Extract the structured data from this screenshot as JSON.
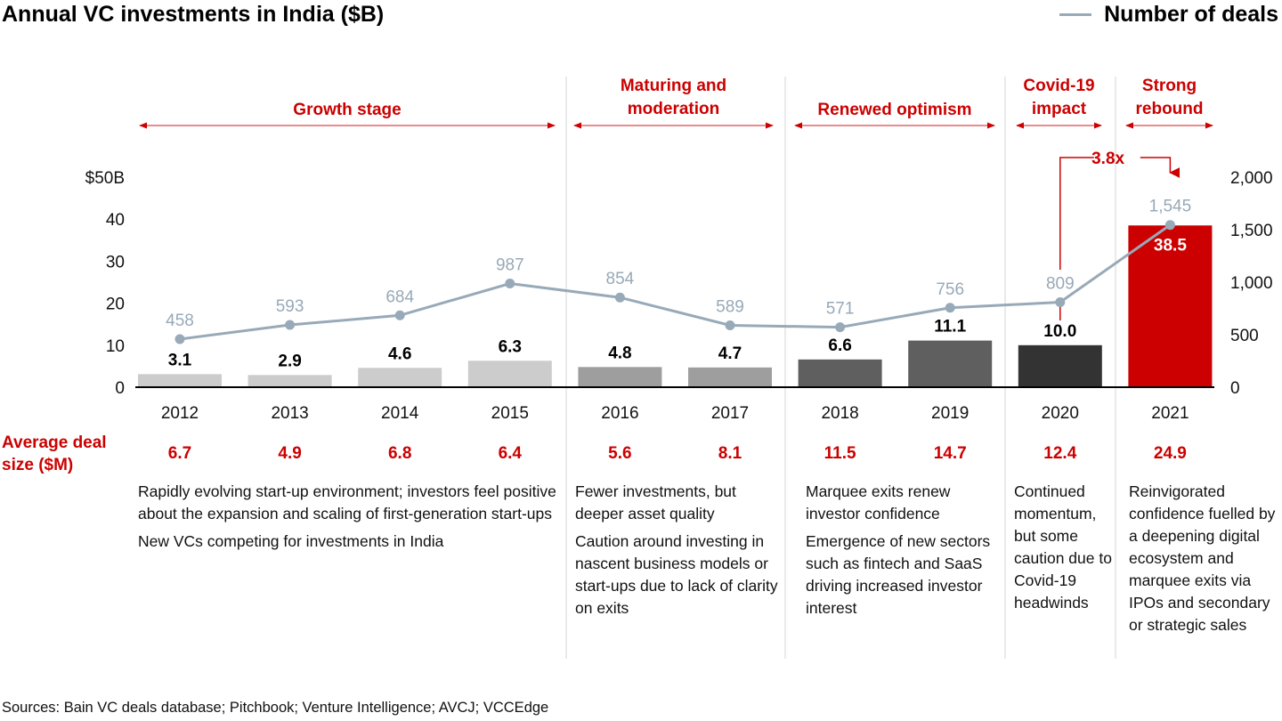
{
  "title": "Annual VC investments in India ($B)",
  "legend": {
    "label": "Number of deals",
    "color": "#98a9b8"
  },
  "phases": [
    {
      "label": "Growth stage",
      "years": [
        "2012",
        "2013",
        "2014",
        "2015"
      ]
    },
    {
      "label": "Maturing and moderation",
      "years": [
        "2016",
        "2017"
      ]
    },
    {
      "label": "Renewed optimism",
      "years": [
        "2018",
        "2019"
      ]
    },
    {
      "label": "Covid-19 impact",
      "years": [
        "2020"
      ]
    },
    {
      "label": "Strong rebound",
      "years": [
        "2021"
      ]
    }
  ],
  "phase_color": "#cc0000",
  "growth_annotation": {
    "label": "3.8x",
    "from": "2020",
    "to": "2021"
  },
  "avg_deal_size": {
    "label": "Average deal size ($M)",
    "values": [
      "6.7",
      "4.9",
      "6.8",
      "6.4",
      "5.6",
      "8.1",
      "11.5",
      "14.7",
      "12.4",
      "24.9"
    ]
  },
  "descriptions": [
    {
      "phase": "Growth stage",
      "paragraphs": [
        "Rapidly evolving start-up environment; investors feel positive about the expansion and scaling of first-generation start-ups",
        "New VCs competing for investments in India"
      ]
    },
    {
      "phase": "Maturing and moderation",
      "paragraphs": [
        "Fewer investments, but deeper asset quality",
        "Caution around investing in nascent business models or start-ups due to lack of clarity on exits"
      ]
    },
    {
      "phase": "Renewed optimism",
      "paragraphs": [
        "Marquee exits renew investor confidence",
        "Emergence of new sectors such as fintech and SaaS driving increased investor interest"
      ]
    },
    {
      "phase": "Covid-19 impact",
      "paragraphs": [
        "Continued momentum, but some caution due to Covid-19 headwinds"
      ]
    },
    {
      "phase": "Strong rebound",
      "paragraphs": [
        "Reinvigorated confidence fuelled by a deepening digital ecosystem and marquee exits via IPOs and secondary or strategic sales"
      ]
    }
  ],
  "source": "Sources: Bain VC deals database; Pitchbook; Venture Intelligence; AVCJ; VCCEdge",
  "chart_data": {
    "type": "bar",
    "title": "Annual VC investments in India ($B)",
    "categories": [
      "2012",
      "2013",
      "2014",
      "2015",
      "2016",
      "2017",
      "2018",
      "2019",
      "2020",
      "2021"
    ],
    "series": [
      {
        "name": "VC investments ($B)",
        "axis": "left",
        "type": "bar",
        "values": [
          3.1,
          2.9,
          4.6,
          6.3,
          4.8,
          4.7,
          6.6,
          11.1,
          10.0,
          38.5
        ],
        "labels": [
          "3.1",
          "2.9",
          "4.6",
          "6.3",
          "4.8",
          "4.7",
          "6.6",
          "11.1",
          "10.0",
          "38.5"
        ],
        "colors": [
          "#cccccc",
          "#cccccc",
          "#cccccc",
          "#cccccc",
          "#9e9e9e",
          "#9e9e9e",
          "#5f5f5f",
          "#5f5f5f",
          "#333333",
          "#cc0000"
        ]
      },
      {
        "name": "Number of deals",
        "axis": "right",
        "type": "line",
        "color": "#98a9b8",
        "values": [
          458,
          593,
          684,
          987,
          854,
          589,
          571,
          756,
          809,
          1545
        ],
        "labels": [
          "458",
          "593",
          "684",
          "987",
          "854",
          "589",
          "571",
          "756",
          "809",
          "1,545"
        ]
      }
    ],
    "y_left": {
      "ylim": [
        0,
        50
      ],
      "ticks": [
        "0",
        "10",
        "20",
        "30",
        "40",
        "$50B"
      ],
      "tick_values": [
        0,
        10,
        20,
        30,
        40,
        50
      ]
    },
    "y_right": {
      "ylim": [
        0,
        2000
      ],
      "ticks": [
        "0",
        "500",
        "1,000",
        "1,500",
        "2,000"
      ],
      "tick_values": [
        0,
        500,
        1000,
        1500,
        2000
      ]
    },
    "xlabel": "",
    "ylabel": "",
    "grid": false,
    "legend": "top-right"
  }
}
